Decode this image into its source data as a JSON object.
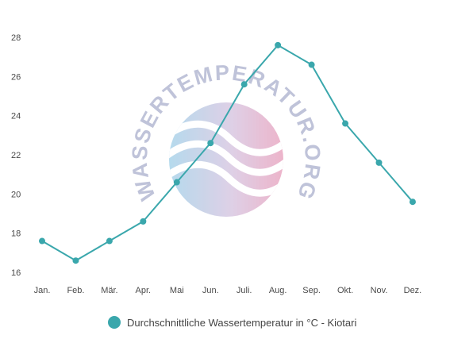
{
  "watermark": {
    "text": "WASSERTEMPERATUR.ORG",
    "text_color": "#b5b9d3"
  },
  "chart_data": {
    "type": "line",
    "categories": [
      "Jan.",
      "Feb.",
      "Mär.",
      "Apr.",
      "Mai",
      "Jun.",
      "Juli.",
      "Aug.",
      "Sep.",
      "Okt.",
      "Nov.",
      "Dez."
    ],
    "series": [
      {
        "name": "Durchschnittliche Wassertemperatur in °C - Kiotari",
        "values": [
          17.6,
          16.6,
          17.6,
          18.6,
          20.6,
          22.6,
          25.6,
          27.6,
          26.6,
          23.6,
          21.6,
          19.6
        ],
        "color": "#3aa7ac"
      }
    ],
    "yticks": [
      16,
      18,
      20,
      22,
      24,
      26,
      28
    ],
    "ylim": [
      15.8,
      28.6
    ],
    "grid": false,
    "legend_position": "bottom-center",
    "title": "",
    "xlabel": "",
    "ylabel": ""
  }
}
